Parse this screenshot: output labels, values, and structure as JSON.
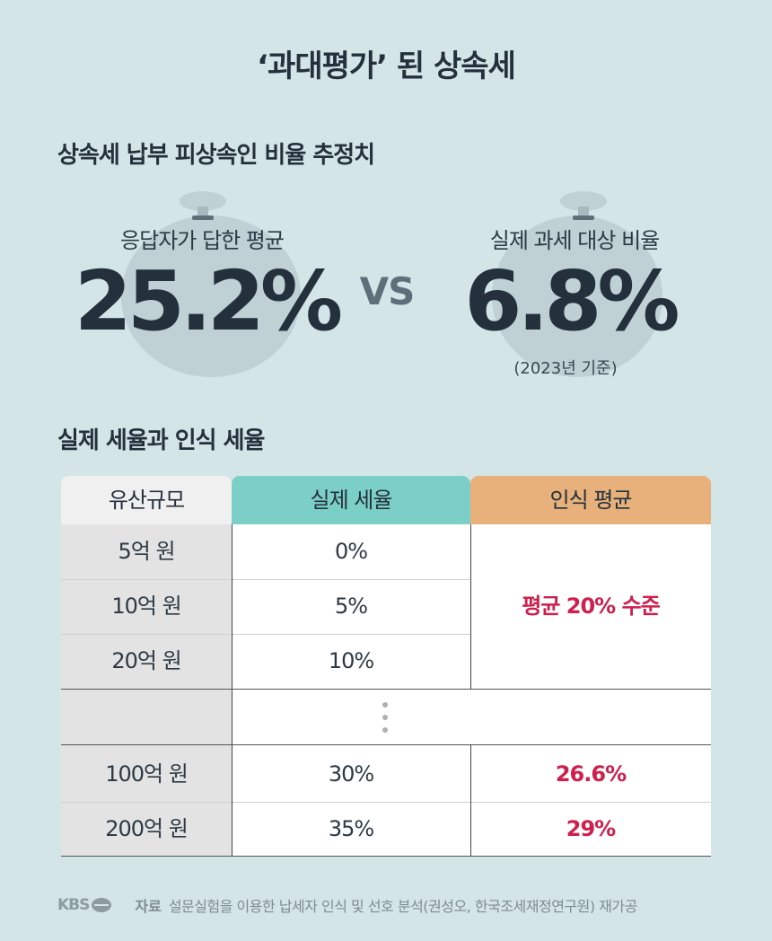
{
  "title": "‘과대평가’ 된 상속세",
  "section1": {
    "heading": "상속세 납부 피상속인 비율 추정치",
    "left": {
      "label": "응답자가 답한 평균",
      "value": "25.2%"
    },
    "vs": "VS",
    "right": {
      "label": "실제 과세 대상 비율",
      "value": "6.8%",
      "note": "(2023년 기준)"
    }
  },
  "section2": {
    "heading": "실제 세율과 인식 세율",
    "table": {
      "headers": [
        "유산규모",
        "실제 세율",
        "인식 평균"
      ],
      "rows_top": [
        {
          "size": "5억 원",
          "actual": "0%"
        },
        {
          "size": "10억 원",
          "actual": "5%"
        },
        {
          "size": "20억 원",
          "actual": "10%"
        }
      ],
      "merged_perceived": "평균 20% 수준",
      "rows_bottom": [
        {
          "size": "100억 원",
          "actual": "30%",
          "perceived": "26.6%"
        },
        {
          "size": "200억 원",
          "actual": "35%",
          "perceived": "29%"
        }
      ]
    }
  },
  "footer": {
    "logo": "KBS",
    "source_label": "자료",
    "source_text": "설문실험을 이용한 납세자 인식 및 선호 분석(권성오, 한국조세재정연구원) 재가공"
  },
  "colors": {
    "background": "#d4e5e8",
    "actual_header": "#7ccfc6",
    "perceived_header": "#e8b07a",
    "highlight": "#cf1f4d"
  }
}
